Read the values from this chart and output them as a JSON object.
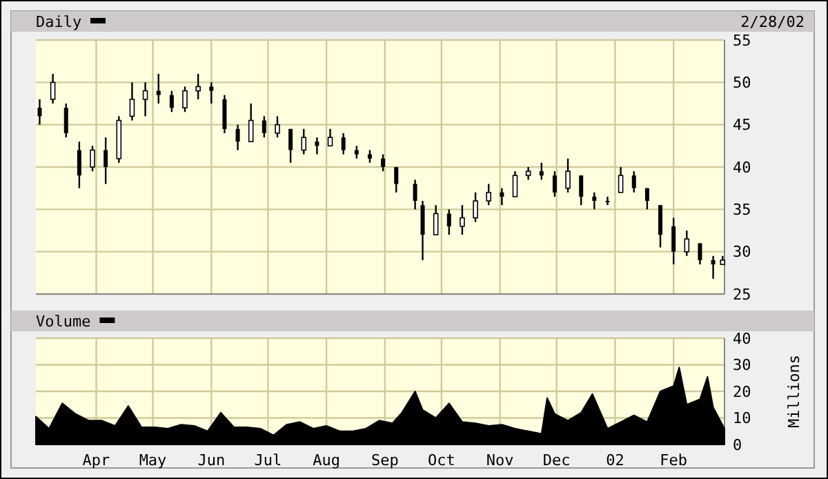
{
  "chart_data": [
    {
      "type": "candlestick",
      "title": "Daily",
      "annotations": [
        "2/28/02"
      ],
      "color": "#000000",
      "x": [
        "2001-03-02",
        "2001-03-09",
        "2001-03-16",
        "2001-03-23",
        "2001-03-30",
        "2001-04-06",
        "2001-04-13",
        "2001-04-20",
        "2001-04-27",
        "2001-05-04",
        "2001-05-11",
        "2001-05-18",
        "2001-05-25",
        "2001-06-01",
        "2001-06-08",
        "2001-06-15",
        "2001-06-22",
        "2001-06-29",
        "2001-07-06",
        "2001-07-13",
        "2001-07-20",
        "2001-07-27",
        "2001-08-03",
        "2001-08-10",
        "2001-08-17",
        "2001-08-24",
        "2001-08-31",
        "2001-09-07",
        "2001-09-17",
        "2001-09-21",
        "2001-09-28",
        "2001-10-05",
        "2001-10-12",
        "2001-10-19",
        "2001-10-26",
        "2001-11-02",
        "2001-11-09",
        "2001-11-16",
        "2001-11-23",
        "2001-11-30",
        "2001-12-07",
        "2001-12-14",
        "2001-12-21",
        "2001-12-28",
        "2002-01-04",
        "2002-01-11",
        "2002-01-18",
        "2002-01-25",
        "2002-02-01",
        "2002-02-08",
        "2002-02-15",
        "2002-02-22",
        "2002-02-27"
      ],
      "ohlc": [
        [
          47,
          48,
          45,
          46
        ],
        [
          48,
          51,
          47.5,
          50
        ],
        [
          47,
          47.5,
          43.5,
          44
        ],
        [
          42,
          43,
          37.5,
          39
        ],
        [
          40,
          42.5,
          39.5,
          42
        ],
        [
          42,
          43.5,
          38,
          40
        ],
        [
          41,
          46,
          40.5,
          45.5
        ],
        [
          46,
          50,
          45.5,
          48
        ],
        [
          48,
          50,
          46,
          49
        ],
        [
          49,
          51,
          47.5,
          48.5
        ],
        [
          48.5,
          49,
          46.5,
          47
        ],
        [
          47,
          49.5,
          46.5,
          49
        ],
        [
          49,
          51,
          48,
          49.5
        ],
        [
          49.5,
          50,
          47.5,
          49
        ],
        [
          48,
          48.5,
          44,
          44.5
        ],
        [
          44.5,
          45,
          42,
          43
        ],
        [
          43,
          47.5,
          43,
          45.5
        ],
        [
          45.5,
          46,
          43.5,
          44
        ],
        [
          44,
          46,
          43.5,
          45
        ],
        [
          44.5,
          44.5,
          40.5,
          42
        ],
        [
          42,
          44.5,
          41.5,
          43.5
        ],
        [
          43,
          43.5,
          41.5,
          42.5
        ],
        [
          42.5,
          44.5,
          42.5,
          43.5
        ],
        [
          43.5,
          44,
          41.5,
          42
        ],
        [
          42,
          42.5,
          41,
          41.5
        ],
        [
          41.5,
          42,
          40.5,
          41
        ],
        [
          41,
          41.5,
          39.5,
          40
        ],
        [
          40,
          40,
          37,
          38
        ],
        [
          38,
          38.5,
          35,
          36
        ],
        [
          35.5,
          36,
          29,
          32
        ],
        [
          32,
          35.5,
          32,
          34.5
        ],
        [
          34.5,
          35,
          32,
          33
        ],
        [
          33,
          35.5,
          32,
          34
        ],
        [
          34,
          37,
          33.5,
          36
        ],
        [
          36,
          38,
          35.5,
          37
        ],
        [
          37,
          37.5,
          35.5,
          36.5
        ],
        [
          36.5,
          39.5,
          36.5,
          39
        ],
        [
          39,
          40,
          38.5,
          39.5
        ],
        [
          39.5,
          40.5,
          38.5,
          39
        ],
        [
          39,
          39.5,
          36.5,
          37
        ],
        [
          37.5,
          41,
          37,
          39.5
        ],
        [
          39,
          39,
          35.5,
          36.5
        ],
        [
          36.5,
          37,
          35,
          36
        ],
        [
          36,
          36.5,
          35.5,
          36
        ],
        [
          37,
          40,
          37,
          39
        ],
        [
          39,
          39.5,
          37,
          37.5
        ],
        [
          37.5,
          37.5,
          35,
          36
        ],
        [
          35.5,
          35.5,
          30.5,
          32
        ],
        [
          33,
          34,
          28.5,
          30
        ],
        [
          30,
          32.5,
          29.5,
          31.5
        ],
        [
          31,
          31,
          28.5,
          29
        ],
        [
          29,
          29.5,
          26.8,
          28.5
        ],
        [
          28.5,
          29.5,
          28.5,
          29
        ]
      ],
      "xlim": [
        "2001-02-28",
        "2002-02-28"
      ],
      "xticks": [
        {
          "value": "2001-04-01",
          "label": null
        },
        {
          "value": "2001-05-01",
          "label": null
        },
        {
          "value": "2001-06-01",
          "label": null
        },
        {
          "value": "2001-07-01",
          "label": null
        },
        {
          "value": "2001-08-01",
          "label": null
        },
        {
          "value": "2001-09-01",
          "label": null
        },
        {
          "value": "2001-10-01",
          "label": null
        },
        {
          "value": "2001-11-01",
          "label": null
        },
        {
          "value": "2001-12-01",
          "label": null
        },
        {
          "value": "2002-01-01",
          "label": null
        },
        {
          "value": "2002-02-01",
          "label": null
        }
      ],
      "ylim": [
        25,
        55
      ],
      "yticks": [
        25,
        30,
        35,
        40,
        45,
        50,
        55
      ],
      "grid": true,
      "tick_labels": "y"
    },
    {
      "type": "area",
      "title": "Volume",
      "ylabel": "Millions",
      "color": "#000000",
      "x": [
        "2001-02-28",
        "2001-03-07",
        "2001-03-14",
        "2001-03-21",
        "2001-03-28",
        "2001-04-04",
        "2001-04-11",
        "2001-04-18",
        "2001-04-25",
        "2001-05-02",
        "2001-05-09",
        "2001-05-16",
        "2001-05-23",
        "2001-05-30",
        "2001-06-06",
        "2001-06-13",
        "2001-06-20",
        "2001-06-27",
        "2001-07-04",
        "2001-07-11",
        "2001-07-18",
        "2001-07-25",
        "2001-08-01",
        "2001-08-08",
        "2001-08-15",
        "2001-08-22",
        "2001-08-29",
        "2001-09-05",
        "2001-09-10",
        "2001-09-17",
        "2001-09-21",
        "2001-09-28",
        "2001-10-05",
        "2001-10-12",
        "2001-10-19",
        "2001-10-26",
        "2001-11-02",
        "2001-11-09",
        "2001-11-16",
        "2001-11-23",
        "2001-11-26",
        "2001-11-30",
        "2001-12-07",
        "2001-12-14",
        "2001-12-20",
        "2001-12-28",
        "2002-01-04",
        "2002-01-11",
        "2002-01-18",
        "2002-01-25",
        "2002-02-01",
        "2002-02-04",
        "2002-02-08",
        "2002-02-15",
        "2002-02-19",
        "2002-02-22",
        "2002-02-28"
      ],
      "values": [
        10.5,
        6,
        15.5,
        11.5,
        9,
        9,
        7,
        14.5,
        6.5,
        6.5,
        6,
        7.5,
        7,
        5,
        12,
        6.5,
        6.5,
        6,
        3.5,
        7.5,
        8.5,
        6,
        7,
        5,
        5,
        6,
        9,
        8,
        12,
        20,
        13,
        10,
        15.5,
        8.5,
        8,
        7,
        7.5,
        6,
        5,
        4,
        17.5,
        11.5,
        9,
        12,
        19,
        6,
        8.5,
        11,
        8.5,
        20,
        22,
        29,
        15,
        17,
        25.5,
        14,
        6
      ],
      "xlim": [
        "2001-02-28",
        "2002-02-28"
      ],
      "xticks": [
        {
          "value": "2001-04-01",
          "label": "Apr"
        },
        {
          "value": "2001-05-01",
          "label": "May"
        },
        {
          "value": "2001-06-01",
          "label": "Jun"
        },
        {
          "value": "2001-07-01",
          "label": "Jul"
        },
        {
          "value": "2001-08-01",
          "label": "Aug"
        },
        {
          "value": "2001-09-01",
          "label": "Sep"
        },
        {
          "value": "2001-10-01",
          "label": "Oct"
        },
        {
          "value": "2001-11-01",
          "label": "Nov"
        },
        {
          "value": "2001-12-01",
          "label": "Dec"
        },
        {
          "value": "2002-01-01",
          "label": "02"
        },
        {
          "value": "2002-02-01",
          "label": "Feb"
        }
      ],
      "ylim": [
        0,
        40
      ],
      "yticks": [
        0,
        10,
        20,
        30,
        40
      ],
      "grid": true
    }
  ]
}
